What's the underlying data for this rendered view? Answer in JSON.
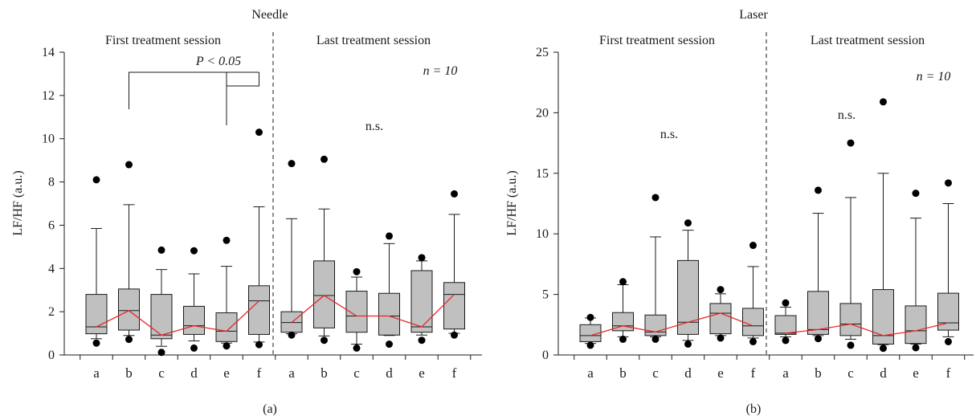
{
  "figure": {
    "panel_a_caption": "(a)",
    "panel_b_caption": "(b)"
  },
  "colors": {
    "box_fill": "#c0c0c0",
    "median_line": "#e8272b",
    "axis": "#1a1a1a",
    "outlier": "#000000"
  },
  "chart_data": [
    {
      "type": "box",
      "title": "Needle",
      "caption": "(a)",
      "ylabel": "LF/HF (a.u.)",
      "ylim": [
        0,
        14
      ],
      "yticks": [
        0,
        2,
        4,
        6,
        8,
        10,
        12,
        14
      ],
      "grid": false,
      "groups": [
        {
          "label": "First treatment session",
          "categories": [
            "a",
            "b",
            "c",
            "d",
            "e",
            "f"
          ]
        },
        {
          "label": "Last treatment session",
          "categories": [
            "a",
            "b",
            "c",
            "d",
            "e",
            "f"
          ]
        }
      ],
      "annotations": {
        "significance": "P < 0.05",
        "first_ns": "",
        "last_ns": "n.s.",
        "n": "n = 10"
      },
      "series": [
        {
          "category": "a",
          "group": 0,
          "whisker_low": 0.75,
          "q1": 0.98,
          "median": 1.3,
          "q3": 2.8,
          "whisker_high": 5.85,
          "outliers": [
            8.1,
            0.55
          ]
        },
        {
          "category": "b",
          "group": 0,
          "whisker_low": 0.9,
          "q1": 1.15,
          "median": 2.05,
          "q3": 3.05,
          "whisker_high": 6.95,
          "outliers": [
            8.8,
            0.72
          ]
        },
        {
          "category": "c",
          "group": 0,
          "whisker_low": 0.4,
          "q1": 0.75,
          "median": 0.92,
          "q3": 2.8,
          "whisker_high": 3.95,
          "outliers": [
            4.85,
            0.12
          ]
        },
        {
          "category": "d",
          "group": 0,
          "whisker_low": 0.65,
          "q1": 0.95,
          "median": 1.35,
          "q3": 2.25,
          "whisker_high": 3.75,
          "outliers": [
            4.82,
            0.32
          ]
        },
        {
          "category": "e",
          "group": 0,
          "whisker_low": 0.55,
          "q1": 0.62,
          "median": 1.1,
          "q3": 1.95,
          "whisker_high": 4.1,
          "outliers": [
            5.3,
            0.42
          ]
        },
        {
          "category": "f",
          "group": 0,
          "whisker_low": 0.6,
          "q1": 0.95,
          "median": 2.5,
          "q3": 3.2,
          "whisker_high": 6.85,
          "outliers": [
            10.3,
            0.48
          ]
        },
        {
          "category": "a",
          "group": 1,
          "whisker_low": 0.98,
          "q1": 1.05,
          "median": 1.5,
          "q3": 2.0,
          "whisker_high": 6.3,
          "outliers": [
            8.85,
            0.92
          ]
        },
        {
          "category": "b",
          "group": 1,
          "whisker_low": 0.88,
          "q1": 1.25,
          "median": 2.75,
          "q3": 4.35,
          "whisker_high": 6.75,
          "outliers": [
            9.05,
            0.68
          ]
        },
        {
          "category": "c",
          "group": 1,
          "whisker_low": 0.5,
          "q1": 1.05,
          "median": 1.8,
          "q3": 2.95,
          "whisker_high": 3.6,
          "outliers": [
            3.85,
            0.32
          ]
        },
        {
          "category": "d",
          "group": 1,
          "whisker_low": 0.9,
          "q1": 0.92,
          "median": 1.8,
          "q3": 2.85,
          "whisker_high": 5.15,
          "outliers": [
            5.5,
            0.5
          ]
        },
        {
          "category": "e",
          "group": 1,
          "whisker_low": 0.92,
          "q1": 1.05,
          "median": 1.3,
          "q3": 3.9,
          "whisker_high": 4.35,
          "outliers": [
            4.5,
            0.68
          ]
        },
        {
          "category": "f",
          "group": 1,
          "whisker_low": 1.0,
          "q1": 1.2,
          "median": 2.8,
          "q3": 3.35,
          "whisker_high": 6.5,
          "outliers": [
            7.45,
            0.92
          ]
        }
      ]
    },
    {
      "type": "box",
      "title": "Laser",
      "caption": "(b)",
      "ylabel": "LF/HF (a.u.)",
      "ylim": [
        0,
        25
      ],
      "yticks": [
        0,
        5,
        10,
        15,
        20,
        25
      ],
      "grid": false,
      "groups": [
        {
          "label": "First treatment session",
          "categories": [
            "a",
            "b",
            "c",
            "d",
            "e",
            "f"
          ]
        },
        {
          "label": "Last treatment session",
          "categories": [
            "a",
            "b",
            "c",
            "d",
            "e",
            "f"
          ]
        }
      ],
      "annotations": {
        "significance": "",
        "first_ns": "n.s.",
        "last_ns": "n.s.",
        "n": "n = 10"
      },
      "series": [
        {
          "category": "a",
          "group": 0,
          "whisker_low": 0.95,
          "q1": 1.1,
          "median": 1.6,
          "q3": 2.5,
          "whisker_high": 3.05,
          "outliers": [
            3.1,
            0.8
          ]
        },
        {
          "category": "b",
          "group": 0,
          "whisker_low": 1.5,
          "q1": 2.0,
          "median": 2.4,
          "q3": 3.5,
          "whisker_high": 5.8,
          "outliers": [
            6.05,
            1.3
          ]
        },
        {
          "category": "c",
          "group": 0,
          "whisker_low": 1.5,
          "q1": 1.6,
          "median": 1.9,
          "q3": 3.3,
          "whisker_high": 9.75,
          "outliers": [
            13.0,
            1.3
          ]
        },
        {
          "category": "d",
          "group": 0,
          "whisker_low": 1.2,
          "q1": 1.7,
          "median": 2.7,
          "q3": 7.8,
          "whisker_high": 10.3,
          "outliers": [
            10.9,
            0.9
          ]
        },
        {
          "category": "e",
          "group": 0,
          "whisker_low": 1.6,
          "q1": 1.75,
          "median": 3.45,
          "q3": 4.25,
          "whisker_high": 5.05,
          "outliers": [
            5.4,
            1.4
          ]
        },
        {
          "category": "f",
          "group": 0,
          "whisker_low": 1.4,
          "q1": 1.6,
          "median": 2.4,
          "q3": 3.85,
          "whisker_high": 7.3,
          "outliers": [
            9.05,
            1.1
          ]
        },
        {
          "category": "a",
          "group": 1,
          "whisker_low": 1.5,
          "q1": 1.7,
          "median": 1.8,
          "q3": 3.25,
          "whisker_high": 3.95,
          "outliers": [
            4.3,
            1.2
          ]
        },
        {
          "category": "b",
          "group": 1,
          "whisker_low": 1.6,
          "q1": 1.7,
          "median": 2.1,
          "q3": 5.25,
          "whisker_high": 11.7,
          "outliers": [
            13.6,
            1.35
          ]
        },
        {
          "category": "c",
          "group": 1,
          "whisker_low": 1.3,
          "q1": 1.6,
          "median": 2.55,
          "q3": 4.25,
          "whisker_high": 13.0,
          "outliers": [
            17.5,
            0.8
          ]
        },
        {
          "category": "d",
          "group": 1,
          "whisker_low": 0.85,
          "q1": 0.9,
          "median": 1.6,
          "q3": 5.4,
          "whisker_high": 15.0,
          "outliers": [
            20.9,
            0.55
          ]
        },
        {
          "category": "e",
          "group": 1,
          "whisker_low": 0.9,
          "q1": 0.95,
          "median": 2.0,
          "q3": 4.05,
          "whisker_high": 11.3,
          "outliers": [
            13.35,
            0.6
          ]
        },
        {
          "category": "f",
          "group": 1,
          "whisker_low": 1.5,
          "q1": 2.05,
          "median": 2.65,
          "q3": 5.1,
          "whisker_high": 12.5,
          "outliers": [
            14.2,
            1.1
          ]
        }
      ]
    }
  ]
}
